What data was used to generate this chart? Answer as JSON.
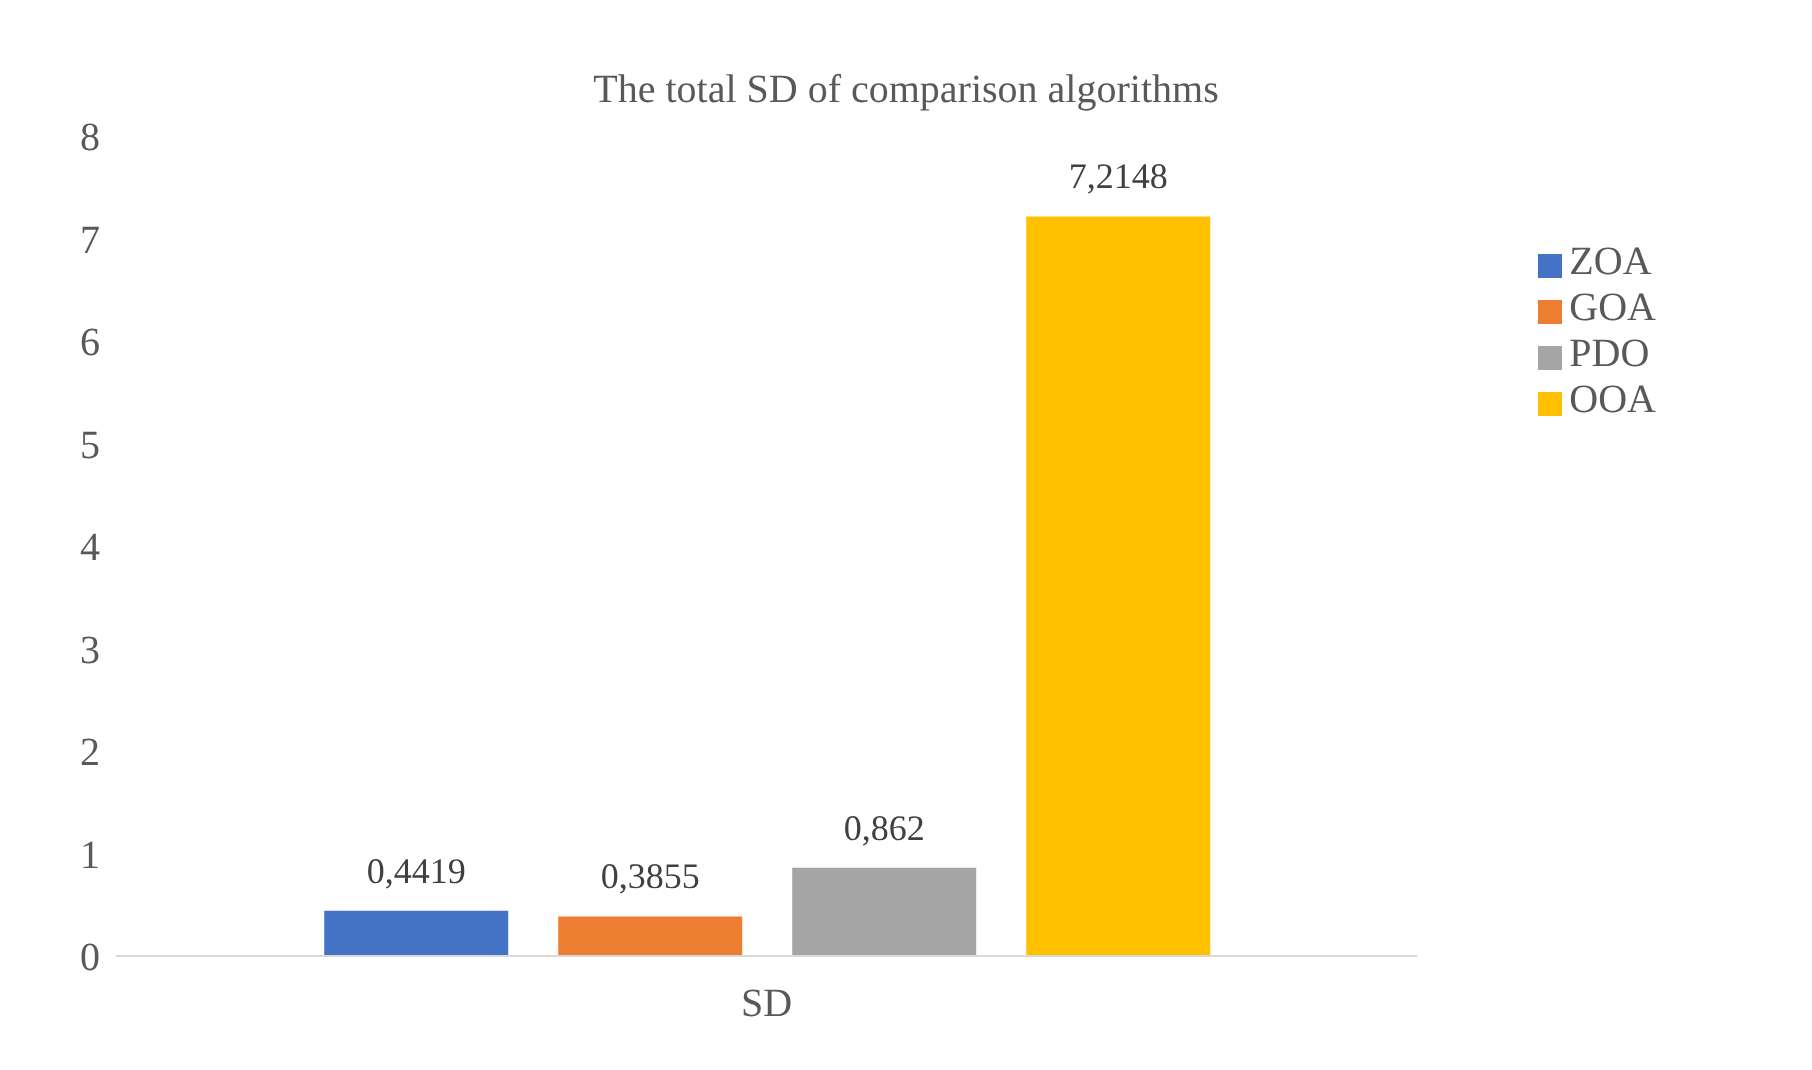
{
  "chart_data": {
    "type": "bar",
    "title": "The total SD of comparison algorithms",
    "categories": [
      "SD"
    ],
    "series": [
      {
        "name": "ZOA",
        "color": "#4472c4",
        "values": [
          0.4419
        ],
        "value_labels": [
          "0,4419"
        ]
      },
      {
        "name": "GOA",
        "color": "#ed7d31",
        "values": [
          0.3855
        ],
        "value_labels": [
          "0,3855"
        ]
      },
      {
        "name": "PDO",
        "color": "#a5a5a5",
        "values": [
          0.862
        ],
        "value_labels": [
          "0,862"
        ]
      },
      {
        "name": "OOA",
        "color": "#ffc000",
        "values": [
          7.2148
        ],
        "value_labels": [
          "7,2148"
        ]
      }
    ],
    "ylim": [
      0,
      8
    ],
    "yticks": [
      0,
      1,
      2,
      3,
      4,
      5,
      6,
      7,
      8
    ],
    "legend": "right"
  }
}
